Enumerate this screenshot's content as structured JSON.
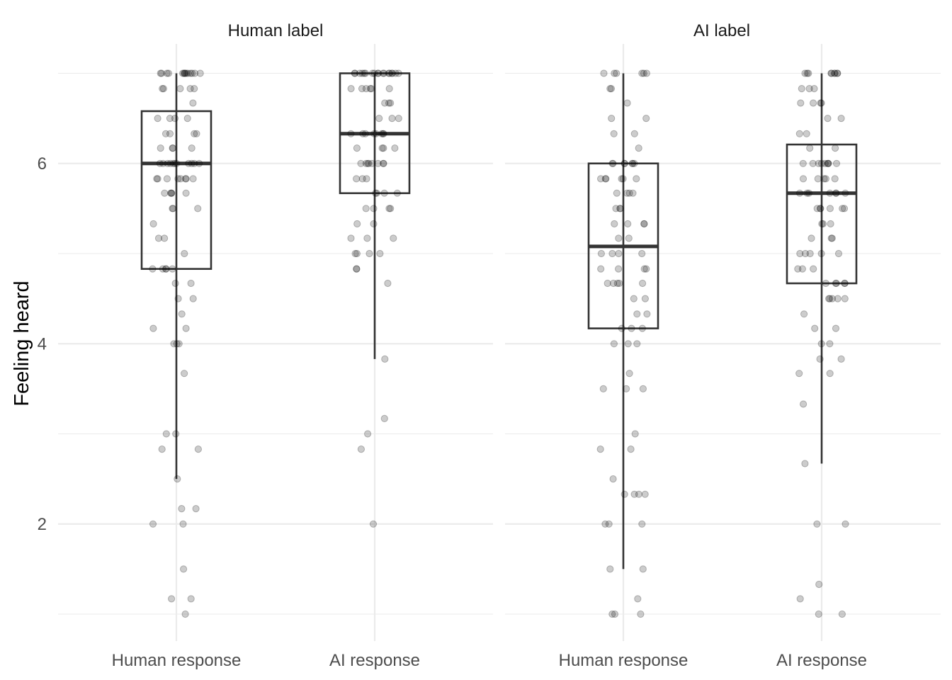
{
  "chart_data": {
    "type": "boxplot_with_jitter",
    "ylabel": "Feeling heard",
    "xlabel": "",
    "ylim": [
      0.7,
      7.3
    ],
    "y_ticks": [
      2,
      4,
      6
    ],
    "grid": true,
    "facets": [
      "Human label",
      "AI label"
    ],
    "categories": [
      "Human response",
      "AI response"
    ],
    "colors": {
      "box": "#333333",
      "points": "#000000",
      "grid": "#ebebeb"
    },
    "panels": [
      {
        "facet": "Human label",
        "groups": [
          {
            "category": "Human response",
            "box": {
              "lower_whisker": 2.5,
              "q1": 4.83,
              "median": 6.0,
              "q3": 6.58,
              "upper_whisker": 7.0
            },
            "points": [
              7,
              7,
              7,
              7,
              7,
              7,
              7,
              7,
              7,
              7,
              7,
              7,
              7,
              7,
              6.83,
              6.83,
              6.83,
              6.83,
              6.83,
              6.67,
              6.5,
              6.5,
              6.5,
              6.5,
              6.33,
              6.33,
              6.33,
              6.33,
              6.17,
              6.17,
              6.17,
              6.17,
              6,
              6,
              6,
              6,
              6,
              6,
              6,
              6,
              6,
              6,
              6,
              5.83,
              5.83,
              5.83,
              5.83,
              5.83,
              5.83,
              5.83,
              5.83,
              5.67,
              5.67,
              5.67,
              5.67,
              5.67,
              5.5,
              5.5,
              5.5,
              5.33,
              5.17,
              5.17,
              5,
              4.83,
              4.83,
              4.83,
              4.83,
              4.83,
              4.67,
              4.67,
              4.5,
              4.5,
              4.33,
              4.17,
              4.17,
              4,
              4,
              4,
              3.67,
              3,
              3,
              2.83,
              2.83,
              2.5,
              2.17,
              2.17,
              2,
              2,
              1.5,
              1.17,
              1.17,
              1
            ]
          },
          {
            "category": "AI response",
            "box": {
              "lower_whisker": 3.83,
              "q1": 5.67,
              "median": 6.33,
              "q3": 7.0,
              "upper_whisker": 7.0
            },
            "points": [
              7,
              7,
              7,
              7,
              7,
              7,
              7,
              7,
              7,
              7,
              7,
              7,
              7,
              7,
              7,
              7,
              7,
              7,
              6.83,
              6.83,
              6.83,
              6.83,
              6.83,
              6.83,
              6.67,
              6.67,
              6.67,
              6.5,
              6.5,
              6.5,
              6.33,
              6.33,
              6.33,
              6.33,
              6.33,
              6.33,
              6.33,
              6.33,
              6.17,
              6.17,
              6.17,
              6.17,
              6,
              6,
              6,
              6,
              6,
              6,
              6,
              6,
              5.83,
              5.83,
              5.83,
              5.67,
              5.67,
              5.67,
              5.67,
              5.5,
              5.5,
              5.5,
              5.5,
              5.33,
              5.33,
              5.17,
              5.17,
              5.17,
              5,
              5,
              5,
              5,
              4.83,
              4.83,
              4.67,
              3.83,
              3.17,
              3,
              2.83,
              2
            ]
          }
        ]
      },
      {
        "facet": "AI label",
        "groups": [
          {
            "category": "Human response",
            "box": {
              "lower_whisker": 1.5,
              "q1": 4.17,
              "median": 5.08,
              "q3": 6.0,
              "upper_whisker": 7.0
            },
            "points": [
              7,
              7,
              7,
              7,
              7,
              7,
              6.83,
              6.83,
              6.67,
              6.5,
              6.5,
              6.33,
              6.33,
              6.17,
              6,
              6,
              6,
              6,
              6,
              6,
              6,
              5.83,
              5.83,
              5.83,
              5.83,
              5.83,
              5.83,
              5.67,
              5.67,
              5.67,
              5.67,
              5.5,
              5.5,
              5.5,
              5.33,
              5.33,
              5.33,
              5.33,
              5.17,
              5.17,
              5,
              5,
              5,
              5,
              4.83,
              4.83,
              4.83,
              4.83,
              4.67,
              4.67,
              4.67,
              4.67,
              4.67,
              4.5,
              4.5,
              4.33,
              4.33,
              4.17,
              4.17,
              4.17,
              4,
              4,
              4,
              3.67,
              3.5,
              3.5,
              3.5,
              3,
              2.83,
              2.83,
              2.5,
              2.33,
              2.33,
              2.33,
              2.33,
              2,
              2,
              2,
              1.5,
              1.5,
              1.17,
              1,
              1,
              1
            ]
          },
          {
            "category": "AI response",
            "box": {
              "lower_whisker": 2.67,
              "q1": 4.67,
              "median": 5.67,
              "q3": 6.21,
              "upper_whisker": 7.0
            },
            "points": [
              7,
              7,
              7,
              7,
              7,
              7,
              7,
              7,
              7,
              6.83,
              6.83,
              6.83,
              6.67,
              6.67,
              6.67,
              6.67,
              6.5,
              6.5,
              6.33,
              6.33,
              6.17,
              6.17,
              6,
              6,
              6,
              6,
              6,
              6,
              6,
              6,
              6,
              5.83,
              5.83,
              5.83,
              5.83,
              5.83,
              5.67,
              5.67,
              5.67,
              5.67,
              5.67,
              5.67,
              5.67,
              5.5,
              5.5,
              5.5,
              5.5,
              5.5,
              5.5,
              5.33,
              5.33,
              5.33,
              5.17,
              5.17,
              5.17,
              5,
              5,
              5,
              5,
              5,
              4.83,
              4.83,
              4.83,
              4.67,
              4.67,
              4.67,
              4.67,
              4.67,
              4.5,
              4.5,
              4.5,
              4.5,
              4.5,
              4.33,
              4.17,
              4.17,
              4,
              4,
              3.83,
              3.83,
              3.67,
              3.67,
              3.33,
              2.67,
              2,
              2,
              1.33,
              1.17,
              1,
              1
            ]
          }
        ]
      }
    ]
  }
}
